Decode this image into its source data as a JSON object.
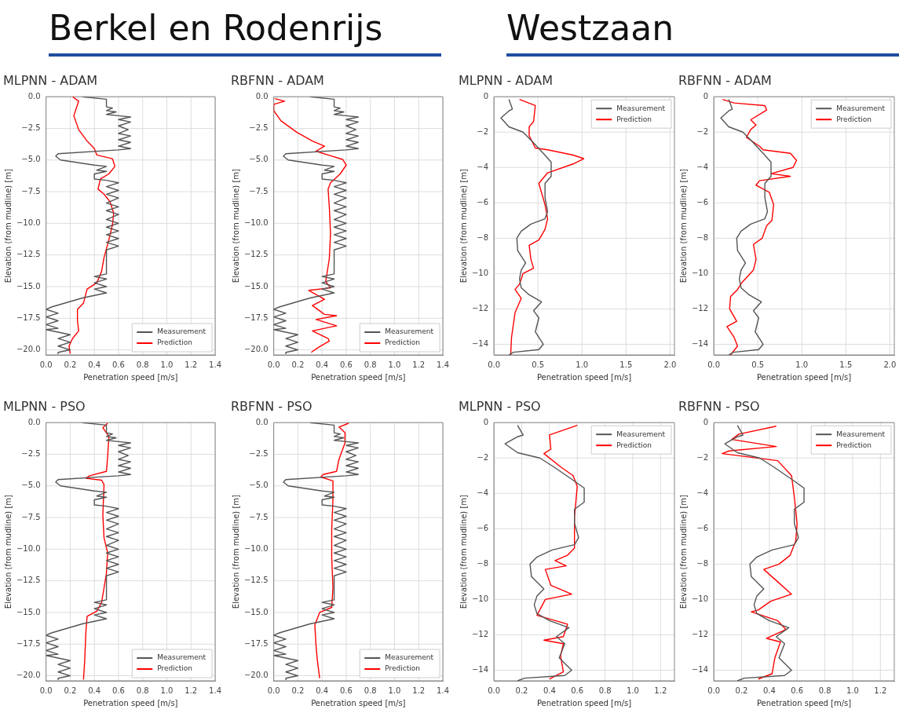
{
  "chart_data": [
    {
      "type": "other",
      "title": "Berkel en Rodenrijs"
    },
    {
      "type": "other",
      "title": "Westzaan"
    },
    {
      "type": "line",
      "title": "MLPNN - ADAM",
      "xlabel": "Penetration speed [m/s]",
      "ylabel": "Elevation (from mudline) [m]",
      "xlim": [
        0,
        1.4
      ],
      "ylim": [
        -20.4,
        0
      ],
      "xticks": [
        {
          "value": 0,
          "label": "0.0"
        },
        0.2,
        0.4,
        0.6,
        0.8,
        {
          "value": 1,
          "label": "1.0"
        },
        1.2,
        1.4
      ],
      "yticks": [
        {
          "value": 0,
          "label": "0.0"
        },
        {
          "value": -2.5,
          "label": "−2.5"
        },
        {
          "value": -5,
          "label": "−5.0"
        },
        {
          "value": -7.5,
          "label": "−7.5"
        },
        {
          "value": -10,
          "label": "−10.0"
        },
        {
          "value": -12.5,
          "label": "−12.5"
        },
        {
          "value": -15,
          "label": "−15.0"
        },
        {
          "value": -17.5,
          "label": "−17.5"
        },
        {
          "value": -20,
          "label": "−20.0"
        }
      ],
      "grid": true,
      "legend": "bottom right",
      "series": [
        {
          "name": "Measurement",
          "color": "#555555",
          "x": [
            0.3,
            0.5,
            0.5,
            0.55,
            0.5,
            0.58,
            0.5,
            0.6,
            0.7,
            0.6,
            0.7,
            0.6,
            0.68,
            0.6,
            0.7,
            0.6,
            0.7,
            0.6,
            0.7,
            0.6,
            0.1,
            0.08,
            0.12,
            0.4,
            0.5,
            0.42,
            0.5,
            0.4,
            0.4,
            0.5,
            0.6,
            0.5,
            0.6,
            0.5,
            0.6,
            0.5,
            0.6,
            0.5,
            0.6,
            0.5,
            0.6,
            0.5,
            0.6,
            0.5,
            0.6,
            0.5,
            0.6,
            0.5,
            0.5,
            0.4,
            0.5,
            0.4,
            0.5,
            0.4,
            0.5,
            0.3,
            0.05,
            0,
            0.1,
            0,
            0.1,
            0,
            0.1,
            0,
            0.2,
            0.1,
            0.2,
            0.1,
            0.2,
            0.1,
            0.1
          ],
          "values": [
            0,
            -0.2,
            -0.8,
            -0.9,
            -1.1,
            -1.2,
            -1.4,
            -1.5,
            -1.6,
            -1.8,
            -2,
            -2.3,
            -2.6,
            -2.9,
            -3.1,
            -3.4,
            -3.6,
            -3.9,
            -4.1,
            -4.2,
            -4.5,
            -4.7,
            -5,
            -5.4,
            -5.5,
            -5.8,
            -5.9,
            -6.1,
            -6.5,
            -6.6,
            -6.8,
            -7.1,
            -7.4,
            -7.7,
            -8,
            -8.4,
            -8.7,
            -9,
            -9.3,
            -9.7,
            -10,
            -10.3,
            -10.6,
            -10.9,
            -11.2,
            -11.5,
            -11.8,
            -12.1,
            -14,
            -14.2,
            -14.4,
            -14.7,
            -15,
            -15.2,
            -15.5,
            -15.9,
            -16.6,
            -16.8,
            -17.1,
            -17.4,
            -17.7,
            -18,
            -18.3,
            -18.4,
            -18.8,
            -19.1,
            -19.4,
            -19.7,
            -20,
            -20.2,
            -20.3
          ]
        },
        {
          "name": "Prediction",
          "color": "#ff0000",
          "x": [
            0.22,
            0.27,
            0.23,
            0.27,
            0.34,
            0.4,
            0.42,
            0.55,
            0.57,
            0.52,
            0.45,
            0.43,
            0.48,
            0.53,
            0.56,
            0.55,
            0.52,
            0.48,
            0.46,
            0.42,
            0.34,
            0.31,
            0.26,
            0.26,
            0.27,
            0.22,
            0.19,
            0.2
          ],
          "values": [
            0,
            -0.35,
            -1.5,
            -2.6,
            -3.5,
            -4.1,
            -4.6,
            -4.9,
            -5.5,
            -6.1,
            -6.5,
            -7.3,
            -7.7,
            -8.3,
            -9.2,
            -10.1,
            -11.3,
            -12.7,
            -13.8,
            -14.7,
            -15.2,
            -16.3,
            -16.8,
            -17.7,
            -18.5,
            -19.1,
            -19.7,
            -20.3
          ]
        }
      ]
    },
    {
      "type": "line",
      "title": "RBFNN - ADAM",
      "xlabel": "Penetration speed [m/s]",
      "ylabel": "Elevation (from mudline) [m]",
      "xlim": [
        0,
        1.4
      ],
      "ylim": [
        -20.4,
        0
      ],
      "xticks": [
        {
          "value": 0,
          "label": "0.0"
        },
        0.2,
        0.4,
        0.6,
        0.8,
        {
          "value": 1,
          "label": "1.0"
        },
        1.2,
        1.4
      ],
      "yticks": [
        {
          "value": 0,
          "label": "0.0"
        },
        {
          "value": -2.5,
          "label": "−2.5"
        },
        {
          "value": -5,
          "label": "−5.0"
        },
        {
          "value": -7.5,
          "label": "−7.5"
        },
        {
          "value": -10,
          "label": "−10.0"
        },
        {
          "value": -12.5,
          "label": "−12.5"
        },
        {
          "value": -15,
          "label": "−15.0"
        },
        {
          "value": -17.5,
          "label": "−17.5"
        },
        {
          "value": -20,
          "label": "−20.0"
        }
      ],
      "grid": true,
      "legend": "bottom right",
      "series": [
        {
          "name": "Measurement",
          "color": "#555555",
          "x": [
            0.3,
            0.5,
            0.5,
            0.55,
            0.5,
            0.58,
            0.5,
            0.6,
            0.7,
            0.6,
            0.7,
            0.6,
            0.68,
            0.6,
            0.7,
            0.6,
            0.7,
            0.6,
            0.7,
            0.6,
            0.1,
            0.08,
            0.12,
            0.4,
            0.5,
            0.42,
            0.5,
            0.4,
            0.4,
            0.5,
            0.6,
            0.5,
            0.6,
            0.5,
            0.6,
            0.5,
            0.6,
            0.5,
            0.6,
            0.5,
            0.6,
            0.5,
            0.6,
            0.5,
            0.6,
            0.5,
            0.6,
            0.5,
            0.5,
            0.4,
            0.5,
            0.4,
            0.5,
            0.4,
            0.5,
            0.3,
            0.05,
            0,
            0.1,
            0,
            0.1,
            0,
            0.1,
            0,
            0.2,
            0.1,
            0.2,
            0.1,
            0.2,
            0.1,
            0.1
          ],
          "values": [
            0,
            -0.2,
            -0.8,
            -0.9,
            -1.1,
            -1.2,
            -1.4,
            -1.5,
            -1.6,
            -1.8,
            -2,
            -2.3,
            -2.6,
            -2.9,
            -3.1,
            -3.4,
            -3.6,
            -3.9,
            -4.1,
            -4.2,
            -4.5,
            -4.7,
            -5,
            -5.4,
            -5.5,
            -5.8,
            -5.9,
            -6.1,
            -6.5,
            -6.6,
            -6.8,
            -7.1,
            -7.4,
            -7.7,
            -8,
            -8.4,
            -8.7,
            -9,
            -9.3,
            -9.7,
            -10,
            -10.3,
            -10.6,
            -10.9,
            -11.2,
            -11.5,
            -11.8,
            -12.1,
            -14,
            -14.2,
            -14.4,
            -14.7,
            -15,
            -15.2,
            -15.5,
            -15.9,
            -16.6,
            -16.8,
            -17.1,
            -17.4,
            -17.7,
            -18,
            -18.3,
            -18.4,
            -18.8,
            -19.1,
            -19.4,
            -19.7,
            -20,
            -20.2,
            -20.3
          ]
        },
        {
          "name": "Prediction",
          "color": "#ff0000",
          "x": [
            0.01,
            0.09,
            0,
            0,
            0.06,
            0.19,
            0.32,
            0.42,
            0.35,
            0.45,
            0.57,
            0.6,
            0.55,
            0.47,
            0.45,
            0.46,
            0.47,
            0.46,
            0.43,
            0.47,
            0.29,
            0.42,
            0.32,
            0.42,
            0.52,
            0.35,
            0.52,
            0.32,
            0.45,
            0.46,
            0.37,
            0.31
          ],
          "values": [
            -0.15,
            -0.35,
            -0.6,
            -1.1,
            -1.9,
            -2.8,
            -3.5,
            -3.9,
            -4.3,
            -4.6,
            -4.95,
            -5.4,
            -6.1,
            -6.8,
            -7.3,
            -8.7,
            -10.8,
            -12.8,
            -14.6,
            -15.1,
            -15.3,
            -16,
            -16.5,
            -17.2,
            -17.3,
            -17.6,
            -18.1,
            -18.5,
            -19.1,
            -19.3,
            -19.8,
            -20.2
          ]
        }
      ]
    },
    {
      "type": "line",
      "title": "MLPNN - ADAM",
      "xlabel": "Penetration speed [m/s]",
      "ylabel": "Elevation (from mudline) [m]",
      "xlim": [
        0,
        2.05
      ],
      "ylim": [
        -14.6,
        0
      ],
      "xticks": [
        {
          "value": 0,
          "label": "0.0"
        },
        0.5,
        {
          "value": 1,
          "label": "1.0"
        },
        1.5,
        {
          "value": 2,
          "label": "2.0"
        }
      ],
      "yticks": [
        {
          "value": 0,
          "label": "0"
        },
        {
          "value": -2,
          "label": "−2"
        },
        {
          "value": -4,
          "label": "−4"
        },
        {
          "value": -6,
          "label": "−6"
        },
        {
          "value": -8,
          "label": "−8"
        },
        {
          "value": -10,
          "label": "−10"
        },
        {
          "value": -12,
          "label": "−12"
        },
        {
          "value": -14,
          "label": "−14"
        }
      ],
      "grid": true,
      "legend": "top right",
      "series": [
        {
          "name": "Measurement",
          "color": "#555555",
          "x": [
            0.17,
            0.21,
            0.17,
            0.08,
            0.17,
            0.33,
            0.43,
            0.56,
            0.65,
            0.65,
            0.58,
            0.58,
            0.61,
            0.58,
            0.42,
            0.31,
            0.26,
            0.27,
            0.36,
            0.31,
            0.29,
            0.31,
            0.4,
            0.54,
            0.45,
            0.51,
            0.47,
            0.56,
            0.51,
            0.22,
            0.17
          ],
          "values": [
            -0.15,
            -0.7,
            -0.8,
            -1.2,
            -1.7,
            -2,
            -2.5,
            -3.2,
            -3.7,
            -4.5,
            -4.9,
            -5.7,
            -6.5,
            -6.9,
            -7.2,
            -7.6,
            -8,
            -8.7,
            -9.4,
            -9.8,
            -10.3,
            -10.8,
            -11.2,
            -11.6,
            -12.1,
            -12.5,
            -13.3,
            -14,
            -14.3,
            -14.45,
            -14.6
          ]
        },
        {
          "name": "Prediction",
          "color": "#ff0000",
          "x": [
            0.29,
            0.47,
            0.45,
            0.4,
            0.4,
            0.47,
            0.61,
            0.9,
            1.02,
            0.9,
            0.61,
            0.51,
            0.58,
            0.61,
            0.58,
            0.51,
            0.4,
            0.42,
            0.45,
            0.33,
            0.29,
            0.24,
            0.31,
            0.24,
            0.2,
            0.19
          ],
          "values": [
            -0.15,
            -0.5,
            -1.4,
            -1.7,
            -2.2,
            -2.9,
            -3,
            -3.3,
            -3.5,
            -3.8,
            -4.3,
            -4.9,
            -6.1,
            -6.9,
            -7.5,
            -8.1,
            -8.4,
            -9.2,
            -9.7,
            -10,
            -10.6,
            -10.9,
            -11.4,
            -12.2,
            -13.6,
            -14.6
          ]
        }
      ]
    },
    {
      "type": "line",
      "title": "RBFNN - ADAM",
      "xlabel": "Penetration speed [m/s]",
      "ylabel": "Elevation (from mudline) [m]",
      "xlim": [
        0,
        2.05
      ],
      "ylim": [
        -14.6,
        0
      ],
      "xticks": [
        {
          "value": 0,
          "label": "0.0"
        },
        0.5,
        {
          "value": 1,
          "label": "1.0"
        },
        1.5,
        {
          "value": 2,
          "label": "2.0"
        }
      ],
      "yticks": [
        {
          "value": 0,
          "label": "0"
        },
        {
          "value": -2,
          "label": "−2"
        },
        {
          "value": -4,
          "label": "−4"
        },
        {
          "value": -6,
          "label": "−6"
        },
        {
          "value": -8,
          "label": "−8"
        },
        {
          "value": -10,
          "label": "−10"
        },
        {
          "value": -12,
          "label": "−12"
        },
        {
          "value": -14,
          "label": "−14"
        }
      ],
      "grid": true,
      "legend": "top right",
      "series": [
        {
          "name": "Measurement",
          "color": "#555555",
          "x": [
            0.17,
            0.21,
            0.17,
            0.08,
            0.17,
            0.33,
            0.43,
            0.56,
            0.65,
            0.65,
            0.58,
            0.58,
            0.61,
            0.58,
            0.42,
            0.31,
            0.26,
            0.27,
            0.36,
            0.31,
            0.29,
            0.31,
            0.4,
            0.54,
            0.45,
            0.51,
            0.47,
            0.56,
            0.51,
            0.22,
            0.17
          ],
          "values": [
            -0.15,
            -0.7,
            -0.8,
            -1.2,
            -1.7,
            -2,
            -2.5,
            -3.2,
            -3.7,
            -4.5,
            -4.9,
            -5.7,
            -6.5,
            -6.9,
            -7.2,
            -7.6,
            -8,
            -8.7,
            -9.4,
            -9.8,
            -10.3,
            -10.8,
            -11.2,
            -11.6,
            -12.1,
            -12.5,
            -13.3,
            -14,
            -14.3,
            -14.45,
            -14.6
          ]
        },
        {
          "name": "Prediction",
          "color": "#ff0000",
          "x": [
            0.1,
            0.23,
            0.58,
            0.6,
            0.42,
            0.48,
            0.42,
            0.37,
            0.52,
            0.56,
            0.87,
            0.94,
            0.9,
            0.65,
            0.87,
            0.52,
            0.48,
            0.63,
            0.68,
            0.66,
            0.6,
            0.55,
            0.45,
            0.48,
            0.45,
            0.32,
            0.27,
            0.19,
            0.18,
            0.26,
            0.15,
            0.23,
            0.27,
            0.19
          ],
          "values": [
            -0.15,
            -0.35,
            -0.5,
            -0.75,
            -1.3,
            -1.6,
            -1.85,
            -2.3,
            -2.8,
            -3,
            -3.2,
            -3.6,
            -4,
            -4.35,
            -4.5,
            -4.75,
            -5,
            -5.4,
            -6.1,
            -7,
            -7.3,
            -8,
            -8.35,
            -9.2,
            -9.8,
            -10.5,
            -10.9,
            -11.3,
            -12,
            -12.7,
            -13,
            -13.6,
            -14.1,
            -14.6
          ]
        }
      ]
    },
    {
      "type": "line",
      "title": "MLPNN - PSO",
      "xlabel": "Penetration speed [m/s]",
      "ylabel": "Elevation (from mudline) [m]",
      "xlim": [
        0,
        1.4
      ],
      "ylim": [
        -20.4,
        0
      ],
      "xticks": [
        {
          "value": 0,
          "label": "0.0"
        },
        0.2,
        0.4,
        0.6,
        0.8,
        {
          "value": 1,
          "label": "1.0"
        },
        1.2,
        1.4
      ],
      "yticks": [
        {
          "value": 0,
          "label": "0.0"
        },
        {
          "value": -2.5,
          "label": "−2.5"
        },
        {
          "value": -5,
          "label": "−5.0"
        },
        {
          "value": -7.5,
          "label": "−7.5"
        },
        {
          "value": -10,
          "label": "−10.0"
        },
        {
          "value": -12.5,
          "label": "−12.5"
        },
        {
          "value": -15,
          "label": "−15.0"
        },
        {
          "value": -17.5,
          "label": "−17.5"
        },
        {
          "value": -20,
          "label": "−20.0"
        }
      ],
      "grid": true,
      "legend": "bottom right",
      "series": [
        {
          "name": "Measurement",
          "color": "#555555",
          "x": [
            0.3,
            0.5,
            0.5,
            0.55,
            0.5,
            0.58,
            0.5,
            0.6,
            0.7,
            0.6,
            0.7,
            0.6,
            0.68,
            0.6,
            0.7,
            0.6,
            0.7,
            0.6,
            0.7,
            0.6,
            0.1,
            0.08,
            0.12,
            0.4,
            0.5,
            0.42,
            0.5,
            0.4,
            0.4,
            0.5,
            0.6,
            0.5,
            0.6,
            0.5,
            0.6,
            0.5,
            0.6,
            0.5,
            0.6,
            0.5,
            0.6,
            0.5,
            0.6,
            0.5,
            0.6,
            0.5,
            0.6,
            0.5,
            0.5,
            0.4,
            0.5,
            0.4,
            0.5,
            0.4,
            0.5,
            0.3,
            0.05,
            0,
            0.1,
            0,
            0.1,
            0,
            0.1,
            0,
            0.2,
            0.1,
            0.2,
            0.1,
            0.2,
            0.1,
            0.1
          ],
          "values": [
            0,
            -0.2,
            -0.8,
            -0.9,
            -1.1,
            -1.2,
            -1.4,
            -1.5,
            -1.6,
            -1.8,
            -2,
            -2.3,
            -2.6,
            -2.9,
            -3.1,
            -3.4,
            -3.6,
            -3.9,
            -4.1,
            -4.2,
            -4.5,
            -4.7,
            -5,
            -5.4,
            -5.5,
            -5.8,
            -5.9,
            -6.1,
            -6.5,
            -6.6,
            -6.8,
            -7.1,
            -7.4,
            -7.7,
            -8,
            -8.4,
            -8.7,
            -9,
            -9.3,
            -9.7,
            -10,
            -10.3,
            -10.6,
            -10.9,
            -11.2,
            -11.5,
            -11.8,
            -12.1,
            -14,
            -14.2,
            -14.4,
            -14.7,
            -15,
            -15.2,
            -15.5,
            -15.9,
            -16.6,
            -16.8,
            -17.1,
            -17.4,
            -17.7,
            -18,
            -18.3,
            -18.4,
            -18.8,
            -19.1,
            -19.4,
            -19.7,
            -20,
            -20.2,
            -20.3
          ]
        },
        {
          "name": "Prediction",
          "color": "#ff0000",
          "x": [
            0.51,
            0.47,
            0.52,
            0.51,
            0.5,
            0.36,
            0.33,
            0.46,
            0.48,
            0.47,
            0.48,
            0.51,
            0.5,
            0.46,
            0.42,
            0.34,
            0.33,
            0.32,
            0.31
          ],
          "values": [
            -0.05,
            -0.4,
            -1.1,
            -2.7,
            -3.85,
            -4.2,
            -4.4,
            -4.55,
            -4.9,
            -7.3,
            -9.1,
            -10.3,
            -11.9,
            -14.2,
            -14.9,
            -15.3,
            -16.5,
            -18.8,
            -20.3
          ]
        }
      ]
    },
    {
      "type": "line",
      "title": "RBFNN - PSO",
      "xlabel": "Penetration speed [m/s]",
      "ylabel": "Elevation (from mudline) [m]",
      "xlim": [
        0,
        1.4
      ],
      "ylim": [
        -20.4,
        0
      ],
      "xticks": [
        {
          "value": 0,
          "label": "0.0"
        },
        0.2,
        0.4,
        0.6,
        0.8,
        {
          "value": 1,
          "label": "1.0"
        },
        1.2,
        1.4
      ],
      "yticks": [
        {
          "value": 0,
          "label": "0.0"
        },
        {
          "value": -2.5,
          "label": "−2.5"
        },
        {
          "value": -5,
          "label": "−5.0"
        },
        {
          "value": -7.5,
          "label": "−7.5"
        },
        {
          "value": -10,
          "label": "−10.0"
        },
        {
          "value": -12.5,
          "label": "−12.5"
        },
        {
          "value": -15,
          "label": "−15.0"
        },
        {
          "value": -17.5,
          "label": "−17.5"
        },
        {
          "value": -20,
          "label": "−20.0"
        }
      ],
      "grid": true,
      "legend": "bottom right",
      "series": [
        {
          "name": "Measurement",
          "color": "#555555",
          "x": [
            0.3,
            0.5,
            0.5,
            0.55,
            0.5,
            0.58,
            0.5,
            0.6,
            0.7,
            0.6,
            0.7,
            0.6,
            0.68,
            0.6,
            0.7,
            0.6,
            0.7,
            0.6,
            0.7,
            0.6,
            0.1,
            0.08,
            0.12,
            0.4,
            0.5,
            0.42,
            0.5,
            0.4,
            0.4,
            0.5,
            0.6,
            0.5,
            0.6,
            0.5,
            0.6,
            0.5,
            0.6,
            0.5,
            0.6,
            0.5,
            0.6,
            0.5,
            0.6,
            0.5,
            0.6,
            0.5,
            0.6,
            0.5,
            0.5,
            0.4,
            0.5,
            0.4,
            0.5,
            0.4,
            0.5,
            0.3,
            0.05,
            0,
            0.1,
            0,
            0.1,
            0,
            0.1,
            0,
            0.2,
            0.1,
            0.2,
            0.1,
            0.2,
            0.1,
            0.1
          ],
          "values": [
            0,
            -0.2,
            -0.8,
            -0.9,
            -1.1,
            -1.2,
            -1.4,
            -1.5,
            -1.6,
            -1.8,
            -2,
            -2.3,
            -2.6,
            -2.9,
            -3.1,
            -3.4,
            -3.6,
            -3.9,
            -4.1,
            -4.2,
            -4.5,
            -4.7,
            -5,
            -5.4,
            -5.5,
            -5.8,
            -5.9,
            -6.1,
            -6.5,
            -6.6,
            -6.8,
            -7.1,
            -7.4,
            -7.7,
            -8,
            -8.4,
            -8.7,
            -9,
            -9.3,
            -9.7,
            -10,
            -10.3,
            -10.6,
            -10.9,
            -11.2,
            -11.5,
            -11.8,
            -12.1,
            -14,
            -14.2,
            -14.4,
            -14.7,
            -15,
            -15.2,
            -15.5,
            -15.9,
            -16.6,
            -16.8,
            -17.1,
            -17.4,
            -17.7,
            -18,
            -18.3,
            -18.4,
            -18.8,
            -19.1,
            -19.4,
            -19.7,
            -20,
            -20.2,
            -20.3
          ]
        },
        {
          "name": "Prediction",
          "color": "#ff0000",
          "x": [
            0.62,
            0.54,
            0.59,
            0.59,
            0.54,
            0.52,
            0.41,
            0.39,
            0.49,
            0.49,
            0.48,
            0.48,
            0.49,
            0.48,
            0.38,
            0.34,
            0.35,
            0.36,
            0.38
          ],
          "values": [
            -0.05,
            -0.35,
            -0.8,
            -1.6,
            -2.9,
            -3.85,
            -4.1,
            -4.3,
            -4.6,
            -6.1,
            -8.4,
            -10.7,
            -13,
            -14.6,
            -15,
            -16,
            -17.6,
            -18.7,
            -20.2
          ]
        }
      ]
    },
    {
      "type": "line",
      "title": "MLPNN - PSO",
      "xlabel": "Penetration speed [m/s]",
      "ylabel": "Elevation (from mudline) [m]",
      "xlim": [
        0,
        1.3
      ],
      "ylim": [
        -14.6,
        0
      ],
      "xticks": [
        {
          "value": 0,
          "label": "0.0"
        },
        0.2,
        0.4,
        0.6,
        0.8,
        {
          "value": 1,
          "label": "1.0"
        },
        1.2
      ],
      "yticks": [
        {
          "value": 0,
          "label": "0"
        },
        {
          "value": -2,
          "label": "−2"
        },
        {
          "value": -4,
          "label": "−4"
        },
        {
          "value": -6,
          "label": "−6"
        },
        {
          "value": -8,
          "label": "−8"
        },
        {
          "value": -10,
          "label": "−10"
        },
        {
          "value": -12,
          "label": "−12"
        },
        {
          "value": -14,
          "label": "−14"
        }
      ],
      "grid": true,
      "legend": "top right",
      "series": [
        {
          "name": "Measurement",
          "color": "#555555",
          "x": [
            0.17,
            0.21,
            0.17,
            0.08,
            0.17,
            0.33,
            0.43,
            0.56,
            0.65,
            0.65,
            0.58,
            0.58,
            0.61,
            0.58,
            0.42,
            0.31,
            0.26,
            0.27,
            0.36,
            0.31,
            0.29,
            0.31,
            0.4,
            0.54,
            0.45,
            0.51,
            0.47,
            0.56,
            0.51,
            0.22,
            0.17
          ],
          "values": [
            -0.15,
            -0.7,
            -0.8,
            -1.2,
            -1.7,
            -2,
            -2.5,
            -3.2,
            -3.7,
            -4.5,
            -4.9,
            -5.7,
            -6.5,
            -6.9,
            -7.2,
            -7.6,
            -8,
            -8.7,
            -9.4,
            -9.8,
            -10.3,
            -10.8,
            -11.2,
            -11.6,
            -12.1,
            -12.5,
            -13.3,
            -14,
            -14.3,
            -14.45,
            -14.6
          ]
        },
        {
          "name": "Prediction",
          "color": "#ff0000",
          "x": [
            0.6,
            0.4,
            0.41,
            0.36,
            0.48,
            0.57,
            0.6,
            0.58,
            0.58,
            0.53,
            0.44,
            0.52,
            0.37,
            0.41,
            0.56,
            0.37,
            0.31,
            0.53,
            0.5,
            0.36,
            0.5,
            0.48,
            0.5,
            0.4
          ],
          "values": [
            -0.15,
            -0.7,
            -1.5,
            -1.75,
            -2.5,
            -3,
            -3.6,
            -5.35,
            -7.1,
            -7.5,
            -7.8,
            -8.1,
            -8.3,
            -9.2,
            -9.7,
            -10,
            -10.9,
            -11.4,
            -12.1,
            -12.3,
            -12.5,
            -13.2,
            -14.1,
            -14.5
          ]
        }
      ]
    },
    {
      "type": "line",
      "title": "RBFNN - PSO",
      "xlabel": "Penetration speed [m/s]",
      "ylabel": "Elevation (from mudline) [m]",
      "xlim": [
        0,
        1.3
      ],
      "ylim": [
        -14.6,
        0
      ],
      "xticks": [
        {
          "value": 0,
          "label": "0.0"
        },
        0.2,
        0.4,
        0.6,
        0.8,
        {
          "value": 1,
          "label": "1.0"
        },
        1.2
      ],
      "yticks": [
        {
          "value": 0,
          "label": "0"
        },
        {
          "value": -2,
          "label": "−2"
        },
        {
          "value": -4,
          "label": "−4"
        },
        {
          "value": -6,
          "label": "−6"
        },
        {
          "value": -8,
          "label": "−8"
        },
        {
          "value": -10,
          "label": "−10"
        },
        {
          "value": -12,
          "label": "−12"
        },
        {
          "value": -14,
          "label": "−14"
        }
      ],
      "grid": true,
      "legend": "top right",
      "series": [
        {
          "name": "Measurement",
          "color": "#555555",
          "x": [
            0.17,
            0.21,
            0.17,
            0.08,
            0.17,
            0.33,
            0.43,
            0.56,
            0.65,
            0.65,
            0.58,
            0.58,
            0.61,
            0.58,
            0.42,
            0.31,
            0.26,
            0.27,
            0.36,
            0.31,
            0.29,
            0.31,
            0.4,
            0.54,
            0.45,
            0.51,
            0.47,
            0.56,
            0.51,
            0.22,
            0.17
          ],
          "values": [
            -0.15,
            -0.7,
            -0.8,
            -1.2,
            -1.7,
            -2,
            -2.5,
            -3.2,
            -3.7,
            -4.5,
            -4.9,
            -5.7,
            -6.5,
            -6.9,
            -7.2,
            -7.6,
            -8,
            -8.7,
            -9.4,
            -9.8,
            -10.3,
            -10.8,
            -11.2,
            -11.6,
            -12.1,
            -12.5,
            -13.3,
            -14,
            -14.3,
            -14.45,
            -14.6
          ]
        },
        {
          "name": "Prediction",
          "color": "#ff0000",
          "x": [
            0.45,
            0.18,
            0.13,
            0.45,
            0.11,
            0.06,
            0.46,
            0.56,
            0.58,
            0.6,
            0.59,
            0.55,
            0.47,
            0.36,
            0.46,
            0.56,
            0.41,
            0.32,
            0.27,
            0.46,
            0.52,
            0.38,
            0.48,
            0.44,
            0.42,
            0.32
          ],
          "values": [
            -0.2,
            -0.65,
            -0.95,
            -1.35,
            -1.6,
            -1.75,
            -2.15,
            -3,
            -4.2,
            -5.75,
            -6.7,
            -7.5,
            -8,
            -8.3,
            -9,
            -9.7,
            -10.1,
            -10.6,
            -10.7,
            -11.2,
            -11.7,
            -12.2,
            -12.4,
            -13.3,
            -14.2,
            -14.5
          ]
        }
      ]
    }
  ]
}
